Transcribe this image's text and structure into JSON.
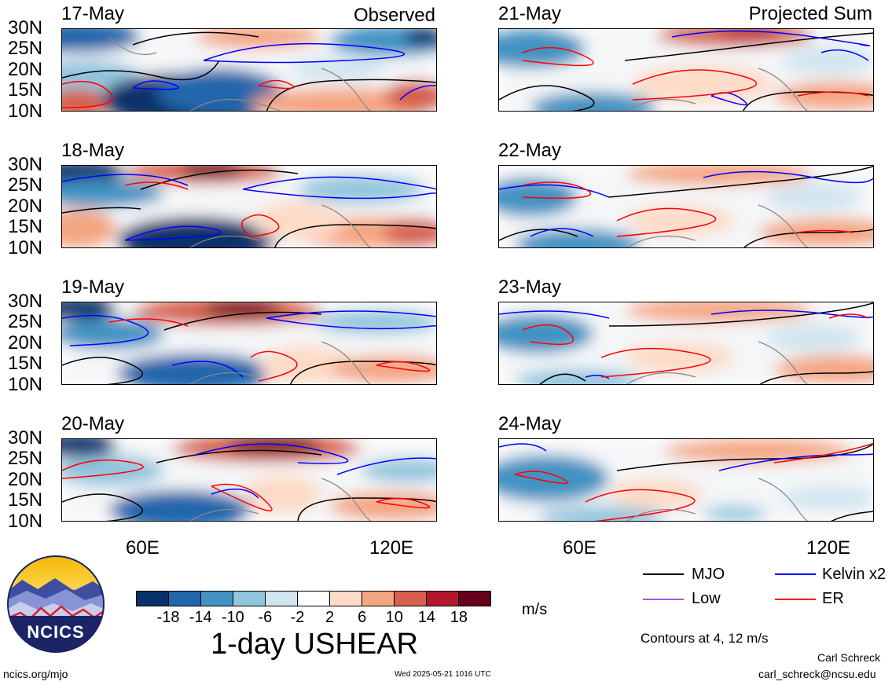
{
  "observed_label": "Observed",
  "projected_label": "Projected Sum",
  "observed_panels": [
    {
      "date": "17-May"
    },
    {
      "date": "18-May"
    },
    {
      "date": "19-May"
    },
    {
      "date": "20-May"
    }
  ],
  "projected_panels": [
    {
      "date": "21-May"
    },
    {
      "date": "22-May"
    },
    {
      "date": "23-May"
    },
    {
      "date": "24-May"
    }
  ],
  "lat_labels": [
    "30N",
    "25N",
    "20N",
    "15N",
    "10N"
  ],
  "lon_labels": [
    "60E",
    "120E"
  ],
  "colorbar": {
    "ticks": [
      "-18",
      "-14",
      "-10",
      "-6",
      "-2",
      "2",
      "6",
      "10",
      "14",
      "18"
    ],
    "colors": [
      "#08306b",
      "#2166ac",
      "#4393c3",
      "#92c5de",
      "#d1e5f0",
      "#ffffff",
      "#fddbc7",
      "#f4a582",
      "#d6604d",
      "#b2182b",
      "#67001f"
    ],
    "unit": "m/s",
    "title": "1-day USHEAR"
  },
  "legend": {
    "items": [
      {
        "label": "MJO",
        "color": "#000000"
      },
      {
        "label": "Kelvin x2",
        "color": "#0000ff"
      },
      {
        "label": "Low",
        "color": "#aa55dd"
      },
      {
        "label": "ER",
        "color": "#ff0000"
      }
    ],
    "contours_note": "Contours at 4, 12 m/s"
  },
  "logo": {
    "text": "NCICS"
  },
  "footer": {
    "url": "ncics.org/mjo",
    "timestamp": "Wed 2025-05-21 1016 UTC",
    "author": "Carl Schreck",
    "email": "carl_schreck@ncsu.edu"
  }
}
